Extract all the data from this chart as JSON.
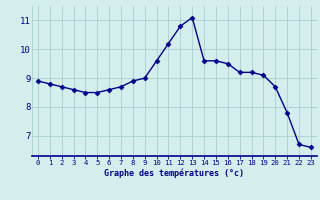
{
  "hours": [
    0,
    1,
    2,
    3,
    4,
    5,
    6,
    7,
    8,
    9,
    10,
    11,
    12,
    13,
    14,
    15,
    16,
    17,
    18,
    19,
    20,
    21,
    22,
    23
  ],
  "temps": [
    8.9,
    8.8,
    8.7,
    8.6,
    8.5,
    8.5,
    8.6,
    8.7,
    8.9,
    9.0,
    9.6,
    10.2,
    10.8,
    11.1,
    9.6,
    9.6,
    9.5,
    9.2,
    9.2,
    9.1,
    8.7,
    7.8,
    6.7,
    6.6
  ],
  "xlabel": "Graphe des températures (°c)",
  "ylim": [
    6.3,
    11.5
  ],
  "yticks": [
    7,
    8,
    9,
    10,
    11
  ],
  "xlim": [
    -0.5,
    23.5
  ],
  "line_color": "#00008B",
  "bg_color": "#d4eeee",
  "grid_color": "#aacece",
  "marker": "D",
  "marker_size": 2.5,
  "linewidth": 1.0,
  "xlabel_fontsize": 6.0,
  "xtick_fontsize": 5.2,
  "ytick_fontsize": 6.5
}
